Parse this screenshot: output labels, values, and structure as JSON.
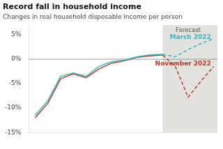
{
  "chart_data": {
    "type": "line",
    "title": "Record fall in household income",
    "subtitle": "Changes in real household disposable income per person",
    "series": [
      {
        "color": "#3ab5c0",
        "line_style": "solid",
        "x": [
          0,
          1,
          2,
          3,
          4,
          5,
          6,
          7,
          8,
          9,
          10
        ],
        "values": [
          -11.5,
          -8.5,
          -3.5,
          -2.8,
          -3.5,
          -1.5,
          -0.5,
          -0.2,
          0.5,
          0.9,
          1.0
        ]
      },
      {
        "color": "#c0392b",
        "line_style": "solid",
        "x": [
          0,
          1,
          2,
          3,
          4,
          5,
          6,
          7,
          8,
          9,
          10
        ],
        "values": [
          -12.0,
          -9.0,
          -4.0,
          -3.0,
          -3.8,
          -2.0,
          -0.8,
          -0.3,
          0.4,
          0.7,
          0.85
        ]
      },
      {
        "color": "#3ab5c0",
        "line_style": "dashed",
        "x": [
          10,
          11,
          12,
          13,
          14
        ],
        "values": [
          1.0,
          0.5,
          2.0,
          3.2,
          4.2
        ]
      },
      {
        "color": "#c0392b",
        "line_style": "dashed",
        "x": [
          10,
          11,
          12,
          13,
          14
        ],
        "values": [
          0.85,
          -1.5,
          -7.8,
          -4.5,
          -1.5
        ]
      }
    ],
    "xlim": [
      -0.5,
      14.3
    ],
    "xticks": [
      0,
      2.8,
      5.6,
      8.4,
      11.2,
      14
    ],
    "ylim": [
      -15,
      7
    ],
    "yticks": [
      {
        "value": -15,
        "label": "-15%"
      },
      {
        "value": -10,
        "label": "-10%"
      },
      {
        "value": -5,
        "label": "-5%"
      },
      {
        "value": 0,
        "label": "0%"
      },
      {
        "value": 5,
        "label": "5%"
      }
    ],
    "tick_labels": "y",
    "grid": false,
    "annotations": [
      {
        "type": "span",
        "x": [
          10,
          14.5
        ],
        "color": "#e2e2de"
      },
      {
        "type": "hline",
        "y": 0,
        "color": "#999999"
      },
      {
        "type": "text",
        "text": "Forecast",
        "x": 12,
        "y": 6.5
      },
      {
        "type": "text",
        "text": "March 2022",
        "x": 13.8,
        "y": 4.5,
        "color": "#3ab5c0"
      },
      {
        "type": "text",
        "text": "November 2022",
        "x": 13.8,
        "y": -1.0,
        "color": "#c0392b"
      }
    ]
  }
}
